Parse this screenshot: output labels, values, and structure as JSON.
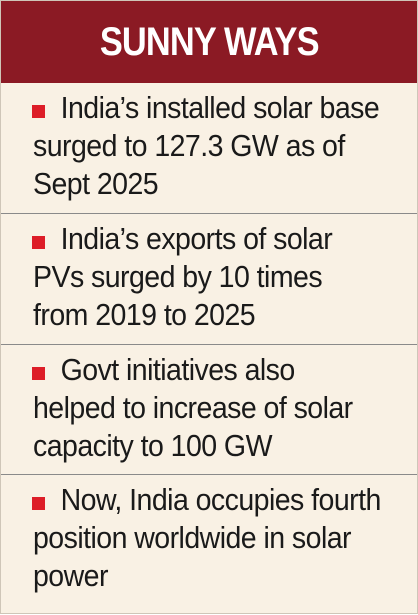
{
  "header": {
    "title": "SUNNY WAYS"
  },
  "colors": {
    "header_background": "#8b1a24",
    "panel_background": "#f9f1e4",
    "bullet": "#dd1d27",
    "text": "#1a1a1a"
  },
  "items": [
    {
      "icon": "red-square-bullet",
      "text": "India’s installed solar base surged to 127.3 GW as of Sept 2025"
    },
    {
      "icon": "red-square-bullet",
      "text": "India’s exports of solar PVs surged by 10 times from 2019 to 2025"
    },
    {
      "icon": "red-square-bullet",
      "text": "Govt initiatives also helped to increase of solar capacity to 100 GW"
    },
    {
      "icon": "red-square-bullet",
      "text": "Now, India occupies fourth position worldwide in solar power"
    }
  ]
}
